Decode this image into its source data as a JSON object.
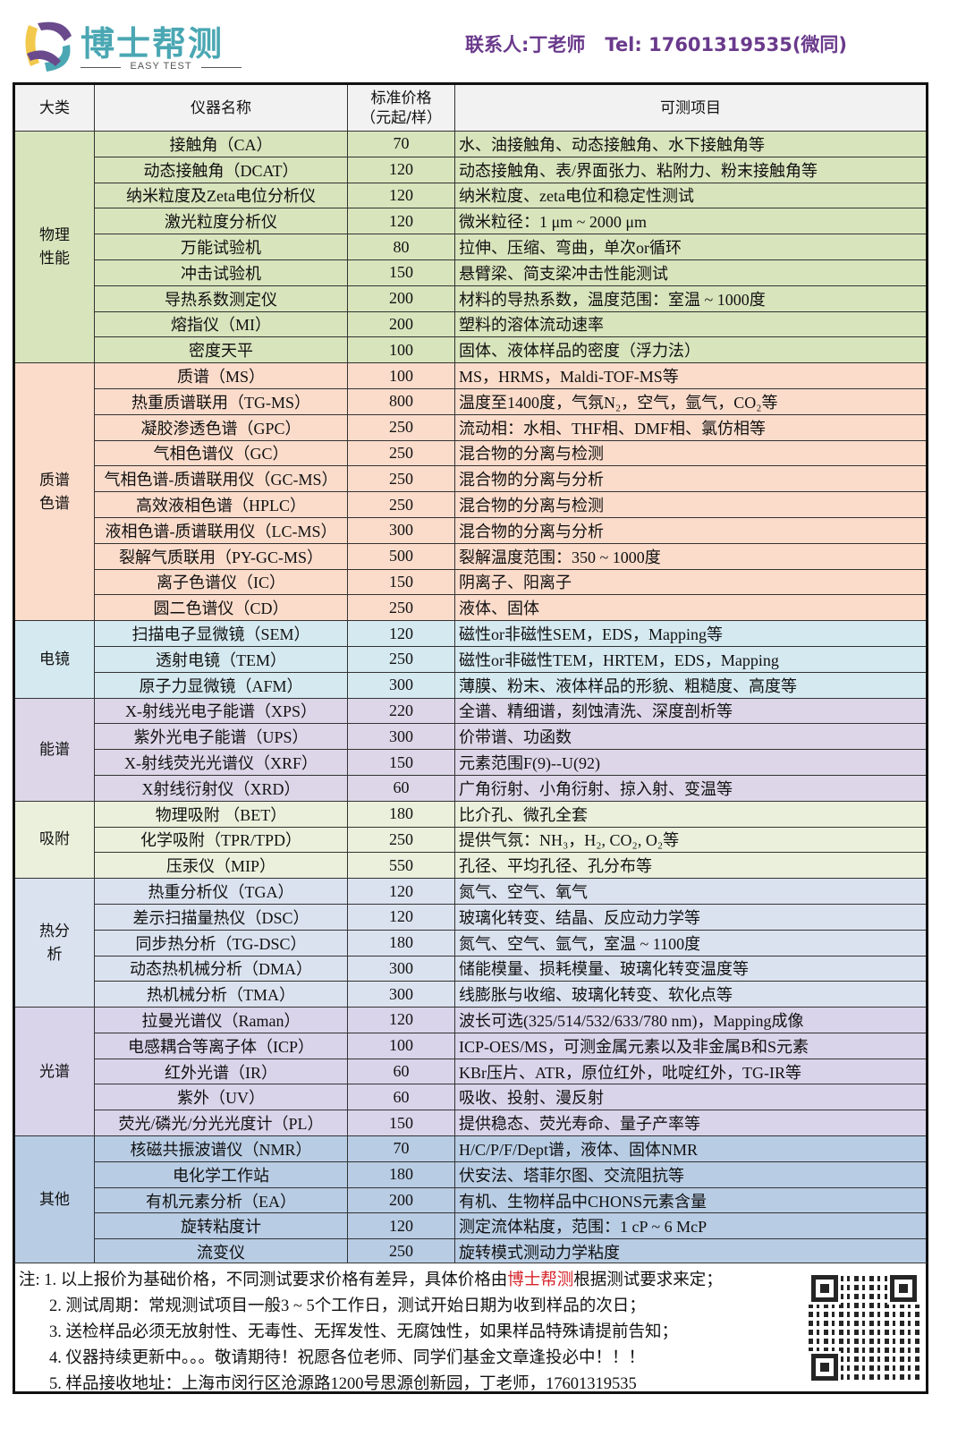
{
  "brand": {
    "name": "博士帮测",
    "subtitle": "EASY TEST",
    "colors": {
      "teal": "#4aa7b3",
      "purple": "#6a4a8c",
      "yellow": "#f2c94c"
    }
  },
  "contact": {
    "person": "联系人:丁老师",
    "tel": "Tel: 17601319535(微同)"
  },
  "table": {
    "headers": [
      "大类",
      "仪器名称",
      "标准价格（元起/样）",
      "可测项目"
    ],
    "header_price_line1": "标准价格",
    "header_price_line2": "（元起/样）",
    "groups": [
      {
        "category": "物理性能",
        "color": "#d8e4bc",
        "rows": [
          [
            "接触角（CA）",
            "70",
            "水、油接触角、动态接触角、水下接触角等"
          ],
          [
            "动态接触角（DCAT）",
            "120",
            "动态接触角、表/界面张力、粘附力、粉末接触角等"
          ],
          [
            "纳米粒度及Zeta电位分析仪",
            "120",
            "纳米粒度、zeta电位和稳定性测试"
          ],
          [
            "激光粒度分析仪",
            "120",
            "微米粒径：1 μm ~ 2000 μm"
          ],
          [
            "万能试验机",
            "80",
            "拉伸、压缩、弯曲，单次or循环"
          ],
          [
            "冲击试验机",
            "150",
            "悬臂梁、简支梁冲击性能测试"
          ],
          [
            "导热系数测定仪",
            "200",
            "材料的导热系数，温度范围：室温 ~ 1000度"
          ],
          [
            "熔指仪（MI）",
            "200",
            "塑料的溶体流动速率"
          ],
          [
            "密度天平",
            "100",
            "固体、液体样品的密度（浮力法）"
          ]
        ]
      },
      {
        "category": "质谱色谱",
        "color": "#fbdccb",
        "rows": [
          [
            "质谱（MS）",
            "100",
            "MS，HRMS，Maldi-TOF-MS等"
          ],
          [
            "热重质谱联用（TG-MS）",
            "800",
            "温度至1400度，气氛N₂，空气，氩气，CO₂等"
          ],
          [
            "凝胶渗透色谱（GPC）",
            "250",
            "流动相：水相、THF相、DMF相、氯仿相等"
          ],
          [
            "气相色谱仪（GC）",
            "250",
            "混合物的分离与检测"
          ],
          [
            "气相色谱-质谱联用仪（GC-MS）",
            "250",
            "混合物的分离与分析"
          ],
          [
            "高效液相色谱（HPLC）",
            "250",
            "混合物的分离与检测"
          ],
          [
            "液相色谱-质谱联用仪（LC-MS）",
            "300",
            "混合物的分离与分析"
          ],
          [
            "裂解气质联用（PY-GC-MS）",
            "500",
            "裂解温度范围：350 ~ 1000度"
          ],
          [
            "离子色谱仪（IC）",
            "150",
            "阴离子、阳离子"
          ],
          [
            "圆二色谱仪（CD）",
            "250",
            "液体、固体"
          ]
        ]
      },
      {
        "category": "电镜",
        "color": "#d5e9f0",
        "rows": [
          [
            "扫描电子显微镜（SEM）",
            "120",
            "磁性or非磁性SEM，EDS，Mapping等"
          ],
          [
            "透射电镜（TEM）",
            "250",
            "磁性or非磁性TEM，HRTEM，EDS，Mapping"
          ],
          [
            "原子力显微镜（AFM）",
            "300",
            "薄膜、粉末、液体样品的形貌、粗糙度、高度等"
          ]
        ]
      },
      {
        "category": "能谱",
        "color": "#dcd6e8",
        "rows": [
          [
            "X-射线光电子能谱（XPS）",
            "220",
            "全谱、精细谱，刻蚀清洗、深度剖析等"
          ],
          [
            "紫外光电子能谱（UPS）",
            "300",
            "价带谱、功函数"
          ],
          [
            "X-射线荧光光谱仪（XRF）",
            "150",
            "元素范围F(9)--U(92)"
          ],
          [
            "X射线衍射仪（XRD）",
            "60",
            "广角衍射、小角衍射、掠入射、变温等"
          ]
        ]
      },
      {
        "category": "吸附",
        "color": "#ebf0dc",
        "rows": [
          [
            "物理吸附 （BET）",
            "180",
            "比介孔、微孔全套"
          ],
          [
            "化学吸附（TPR/TPD）",
            "250",
            "提供气氛：NH₃，H₂, CO₂, O₂等"
          ],
          [
            "压汞仪（MIP）",
            "550",
            "孔径、平均孔径、孔分布等"
          ]
        ]
      },
      {
        "category": "热分析",
        "color": "#dbe2ef",
        "rows": [
          [
            "热重分析仪（TGA）",
            "120",
            "氮气、空气、氧气"
          ],
          [
            "差示扫描量热仪（DSC）",
            "120",
            "玻璃化转变、结晶、反应动力学等"
          ],
          [
            "同步热分析（TG-DSC）",
            "180",
            "氮气、空气、氩气，室温 ~ 1100度"
          ],
          [
            "动态热机械分析（DMA）",
            "300",
            "储能模量、损耗模量、玻璃化转变温度等"
          ],
          [
            "热机械分析（TMA）",
            "300",
            "线膨胀与收缩、玻璃化转变、软化点等"
          ]
        ]
      },
      {
        "category": "光谱",
        "color": "#d9d4ea",
        "rows": [
          [
            "拉曼光谱仪（Raman）",
            "120",
            "波长可选(325/514/532/633/780 nm)，Mapping成像"
          ],
          [
            "电感耦合等离子体（ICP）",
            "100",
            "ICP-OES/MS，可测金属元素以及非金属B和S元素"
          ],
          [
            "红外光谱（IR）",
            "60",
            "KBr压片、ATR，原位红外，吡啶红外，TG-IR等"
          ],
          [
            "紫外（UV）",
            "60",
            "吸收、投射、漫反射"
          ],
          [
            "荧光/磷光/分光光度计（PL）",
            "150",
            "提供稳态、荧光寿命、量子产率等"
          ]
        ]
      },
      {
        "category": "其他",
        "color": "#b8cce4",
        "rows": [
          [
            "核磁共振波谱仪（NMR）",
            "70",
            "H/C/P/F/Dept谱，液体、固体NMR"
          ],
          [
            "电化学工作站",
            "180",
            "伏安法、塔菲尔图、交流阻抗等"
          ],
          [
            "有机元素分析（EA）",
            "200",
            "有机、生物样品中CHONS元素含量"
          ],
          [
            "旋转粘度计",
            "120",
            "测定流体粘度，范围：1 cP ~ 6 McP"
          ],
          [
            "流变仪",
            "250",
            "旋转模式测动力学粘度"
          ]
        ]
      }
    ]
  },
  "notes": {
    "n1_pre": "注: 1. 以上报价为基础价格，不同测试要求价格有差异，具体价格由",
    "n1_brand": "博士帮测",
    "n1_post": "根据测试要求来定；",
    "n2": "2. 测试周期：常规测试项目一般3 ~ 5个工作日，测试开始日期为收到样品的次日；",
    "n3": "3. 送检样品必须无放射性、无毒性、无挥发性、无腐蚀性，如果样品特殊请提前告知；",
    "n4": "4. 仪器持续更新中。。。敬请期待！祝愿各位老师、同学们基金文章逢投必中！！！",
    "n5": "5. 样品接收地址：上海市闵行区沧源路1200号思源创新园，丁老师，17601319535"
  }
}
